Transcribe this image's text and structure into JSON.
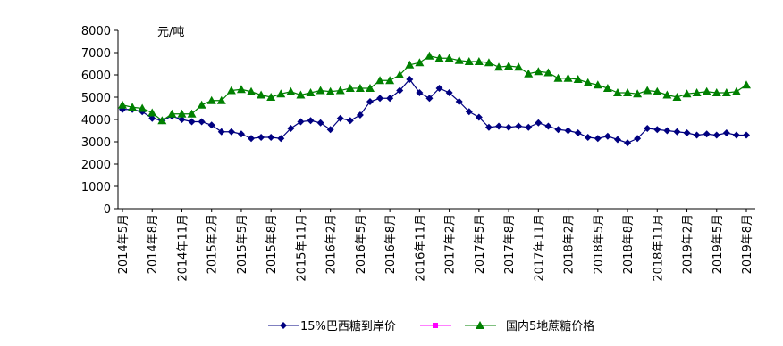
{
  "chart_data": {
    "type": "line",
    "y_unit": "元/吨",
    "categories": [
      "2014年5月",
      null,
      null,
      "2014年8月",
      null,
      null,
      "2014年11月",
      null,
      null,
      "2015年2月",
      null,
      null,
      "2015年5月",
      null,
      null,
      "2015年8月",
      null,
      null,
      "2015年11月",
      null,
      null,
      "2016年2月",
      null,
      null,
      "2016年5月",
      null,
      null,
      "2016年8月",
      null,
      null,
      "2016年11月",
      null,
      null,
      "2017年2月",
      null,
      null,
      "2017年5月",
      null,
      null,
      "2017年8月",
      null,
      null,
      "2017年11月",
      null,
      null,
      "2018年2月",
      null,
      null,
      "2018年5月",
      null,
      null,
      "2018年8月",
      null,
      null,
      "2018年11月",
      null,
      null,
      "2019年2月",
      null,
      null,
      "2019年5月",
      null,
      null,
      "2019年8月"
    ],
    "series": [
      {
        "name": "15%巴西糖到岸价",
        "color": "#000080",
        "marker": "diamond",
        "values": [
          4450,
          4450,
          4350,
          4050,
          3950,
          4150,
          4000,
          3900,
          3900,
          3750,
          3450,
          3450,
          3350,
          3150,
          3200,
          3200,
          3150,
          3600,
          3900,
          3950,
          3850,
          3550,
          4050,
          3950,
          4200,
          4800,
          4950,
          4950,
          5300,
          5800,
          5200,
          4950,
          5400,
          5200,
          4800,
          4350,
          4100,
          3650,
          3700,
          3650,
          3700,
          3650,
          3850,
          3700,
          3550,
          3500,
          3400,
          3200,
          3150,
          3250,
          3100,
          2950,
          3150,
          3600,
          3550,
          3500,
          3450,
          3400,
          3300,
          3350,
          3300,
          3400,
          3300,
          3300
        ]
      },
      {
        "name": "国内5地蔗糖价格",
        "color": "#008000",
        "marker": "triangle",
        "values": [
          4650,
          4550,
          4500,
          4300,
          3950,
          4250,
          4250,
          4250,
          4650,
          4850,
          4850,
          5300,
          5350,
          5250,
          5100,
          5000,
          5150,
          5250,
          5100,
          5200,
          5300,
          5250,
          5300,
          5400,
          5400,
          5400,
          5750,
          5750,
          6000,
          6450,
          6550,
          6850,
          6750,
          6750,
          6650,
          6600,
          6600,
          6550,
          6350,
          6400,
          6350,
          6050,
          6150,
          6100,
          5850,
          5850,
          5800,
          5650,
          5550,
          5400,
          5200,
          5200,
          5150,
          5300,
          5250,
          5100,
          5000,
          5150,
          5200,
          5250,
          5200,
          5200,
          5250,
          5550
        ]
      }
    ],
    "ylim": [
      0,
      8000
    ],
    "yticks": [
      0,
      1000,
      2000,
      3000,
      4000,
      5000,
      6000,
      7000,
      8000
    ],
    "grid": false
  }
}
